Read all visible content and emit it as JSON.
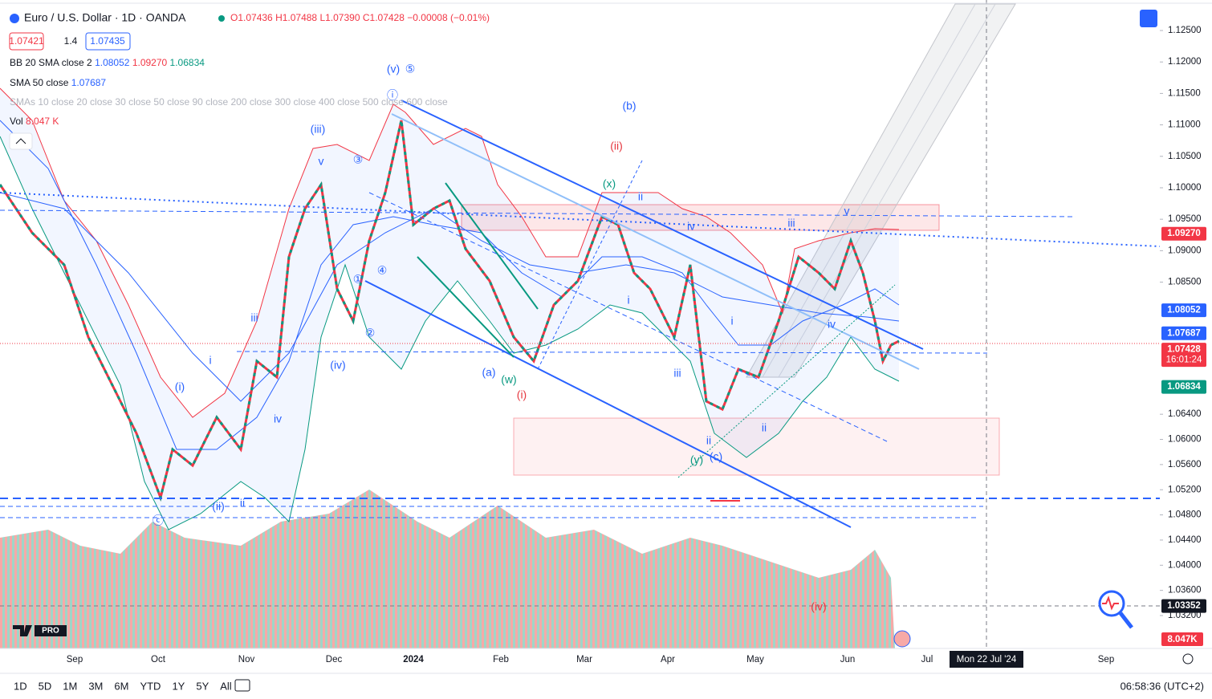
{
  "header": {
    "symbol": "Euro / U.S. Dollar · 1D · OANDA",
    "open": "O1.07436",
    "high": "H1.07488",
    "low": "L1.07390",
    "close": "C1.07428",
    "change": "−0.00008 (−0.01%)",
    "bid": "1.07421",
    "spread": "1.4",
    "ask": "1.07435"
  },
  "indicators": [
    {
      "name": "BB 20 SMA close 2",
      "values": [
        "1.08052",
        "1.09270",
        "1.06834"
      ]
    },
    {
      "name": "SMA 50 close",
      "values": [
        "1.07687"
      ]
    },
    {
      "name": "SMAs 10 close 20 close 30 close 50 close 90 close 200 close 300 close 400 close 500 close 600 close"
    },
    {
      "name": "Vol",
      "values": [
        "8.047 K"
      ]
    }
  ],
  "price_axis": {
    "ylim": [
      1.02677,
      1.12985
    ],
    "ticks": [
      {
        "value": 1.125,
        "label": "1.12500"
      },
      {
        "value": 1.12,
        "label": "1.12000"
      },
      {
        "value": 1.115,
        "label": "1.11500"
      },
      {
        "value": 1.11,
        "label": "1.11000"
      },
      {
        "value": 1.105,
        "label": "1.10500"
      },
      {
        "value": 1.1,
        "label": "1.10000"
      },
      {
        "value": 1.095,
        "label": "1.09500"
      },
      {
        "value": 1.09,
        "label": "1.09000"
      },
      {
        "value": 1.085,
        "label": "1.08500"
      },
      {
        "value": 1.064,
        "label": "1.06400"
      },
      {
        "value": 1.06,
        "label": "1.06000"
      },
      {
        "value": 1.056,
        "label": "1.05600"
      },
      {
        "value": 1.052,
        "label": "1.05200"
      },
      {
        "value": 1.048,
        "label": "1.04800"
      },
      {
        "value": 1.044,
        "label": "1.04400"
      },
      {
        "value": 1.04,
        "label": "1.04000"
      },
      {
        "value": 1.036,
        "label": "1.03600"
      },
      {
        "value": 1.032,
        "label": "1.03200"
      }
    ],
    "badges": [
      {
        "value": 1.0927,
        "label": "1.09270",
        "color": "#f23645"
      },
      {
        "value": 1.08052,
        "label": "1.08052",
        "color": "#2962ff"
      },
      {
        "value": 1.07687,
        "label": "1.07687",
        "color": "#2962ff"
      },
      {
        "value": 1.07428,
        "label": "1.07428",
        "color": "#f23645",
        "countdown": "16:01:24"
      },
      {
        "value": 1.06834,
        "label": "1.06834",
        "color": "#089981"
      },
      {
        "value": 1.03352,
        "label": "1.03352",
        "color": "#131722"
      }
    ],
    "volume_badge": {
      "label": "8.047K",
      "color": "#f23645"
    }
  },
  "time_axis": {
    "labels": [
      "Sep",
      "Oct",
      "Nov",
      "Dec",
      "2024",
      "Feb",
      "Mar",
      "Apr",
      "May",
      "Jun",
      "Jul",
      "Sep"
    ],
    "crosshair": "Mon 22 Jul '24"
  },
  "waves": [
    {
      "text": "(v)",
      "color": "#2962ff"
    },
    {
      "text": "⑤",
      "color": "#2962ff"
    },
    {
      "text": "(b)",
      "color": "#2962ff"
    },
    {
      "text": "(ii)",
      "color": "#e5373f"
    },
    {
      "text": "(iii)",
      "color": "#2962ff"
    },
    {
      "text": "v",
      "color": "#2962ff"
    },
    {
      "text": "③",
      "color": "#2962ff"
    },
    {
      "text": "④",
      "color": "#2962ff"
    },
    {
      "text": "①",
      "color": "#2962ff"
    },
    {
      "text": "②",
      "color": "#2962ff"
    },
    {
      "text": "iii",
      "color": "#2962ff"
    },
    {
      "text": "i",
      "color": "#2962ff"
    },
    {
      "text": "(i)",
      "color": "#2962ff"
    },
    {
      "text": "iv",
      "color": "#2962ff"
    },
    {
      "text": "(iv)",
      "color": "#2962ff"
    },
    {
      "text": "(ii)",
      "color": "#2962ff"
    },
    {
      "text": "ii",
      "color": "#2962ff"
    },
    {
      "text": "ⓒ",
      "color": "#2962ff"
    },
    {
      "text": "(x)",
      "color": "#089981"
    },
    {
      "text": "ii",
      "color": "#2962ff"
    },
    {
      "text": "iv",
      "color": "#2962ff"
    },
    {
      "text": "iii",
      "color": "#2962ff"
    },
    {
      "text": "v",
      "color": "#2962ff"
    },
    {
      "text": "i",
      "color": "#2962ff"
    },
    {
      "text": "iii",
      "color": "#2962ff"
    },
    {
      "text": "i",
      "color": "#2962ff"
    },
    {
      "text": "ii",
      "color": "#2962ff"
    },
    {
      "text": "iv",
      "color": "#2962ff"
    },
    {
      "text": "(a)",
      "color": "#2962ff"
    },
    {
      "text": "(w)",
      "color": "#089981"
    },
    {
      "text": "(i)",
      "color": "#e5373f"
    },
    {
      "text": "ii",
      "color": "#2962ff"
    },
    {
      "text": "(y)",
      "color": "#089981"
    },
    {
      "text": "(c)",
      "color": "#2962ff"
    },
    {
      "text": "(iv)",
      "color": "#e5373f"
    },
    {
      "text": "ⓘ",
      "color": "#2962ff"
    }
  ],
  "logo": "PRO",
  "toolbar": {
    "ranges": [
      "1D",
      "5D",
      "1M",
      "3M",
      "6M",
      "YTD",
      "1Y",
      "5Y",
      "All"
    ],
    "clock": "06:58:36 (UTC+2)"
  }
}
